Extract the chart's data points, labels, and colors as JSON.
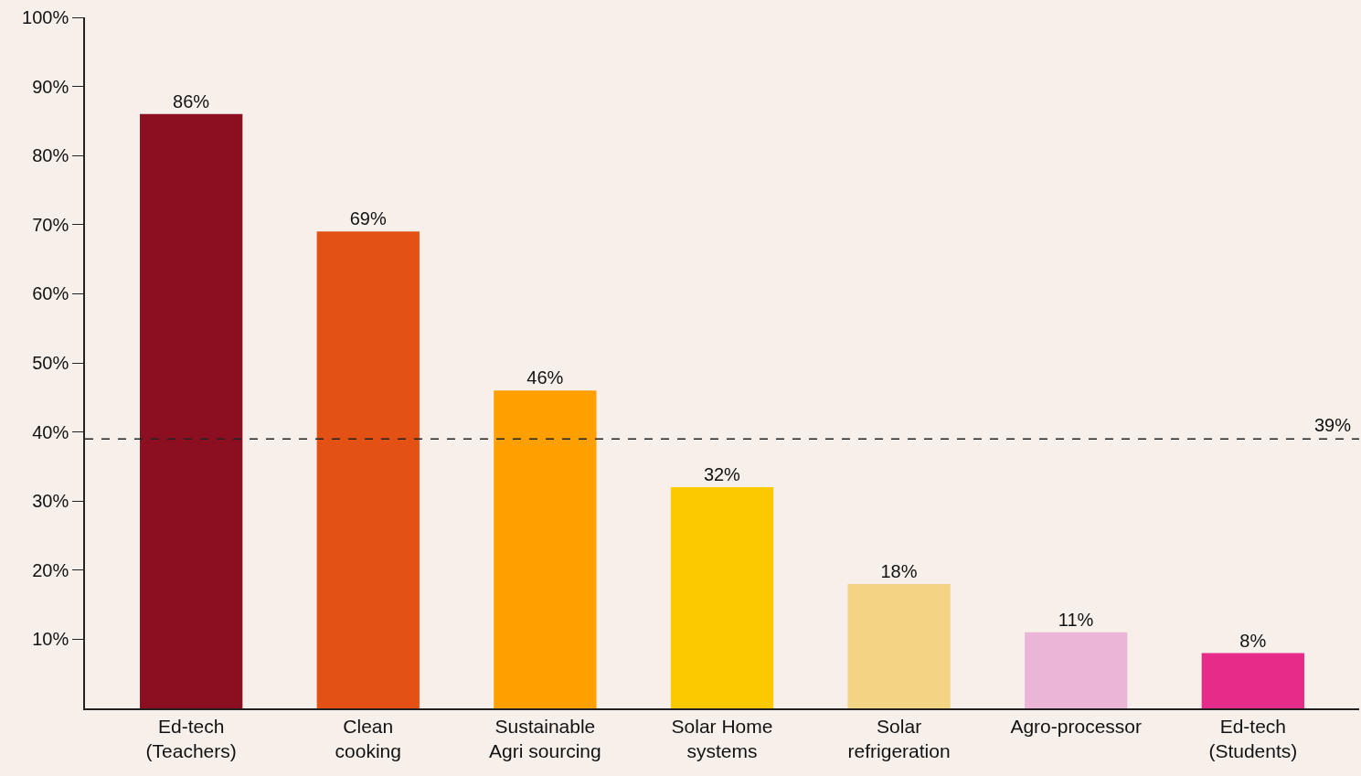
{
  "chart_data": {
    "type": "bar",
    "categories": [
      "Ed-tech\n(Teachers)",
      "Clean\ncooking",
      "Sustainable\nAgri sourcing",
      "Solar Home\nsystems",
      "Solar\nrefrigeration",
      "Agro-processor",
      "Ed-tech\n(Students)"
    ],
    "values": [
      86,
      69,
      46,
      32,
      18,
      11,
      8
    ],
    "value_labels": [
      "86%",
      "69%",
      "46%",
      "32%",
      "18%",
      "11%",
      "8%"
    ],
    "colors": [
      "#8b0f20",
      "#e35214",
      "#ff9f00",
      "#fcc900",
      "#f3d484",
      "#ebb5d8",
      "#e62c89"
    ],
    "ylim": [
      0,
      100
    ],
    "yticks": [
      {
        "value": 10,
        "label": "10%"
      },
      {
        "value": 20,
        "label": "20%"
      },
      {
        "value": 30,
        "label": "30%"
      },
      {
        "value": 40,
        "label": "40%"
      },
      {
        "value": 50,
        "label": "50%"
      },
      {
        "value": 60,
        "label": "60%"
      },
      {
        "value": 70,
        "label": "70%"
      },
      {
        "value": 80,
        "label": "80%"
      },
      {
        "value": 90,
        "label": "90%"
      },
      {
        "value": 100,
        "label": "100%"
      }
    ],
    "ref_lines": [
      {
        "axis": "y",
        "value": 39,
        "label": "39%",
        "color": "#222222",
        "line_style": "dashed"
      }
    ],
    "grid": false
  }
}
